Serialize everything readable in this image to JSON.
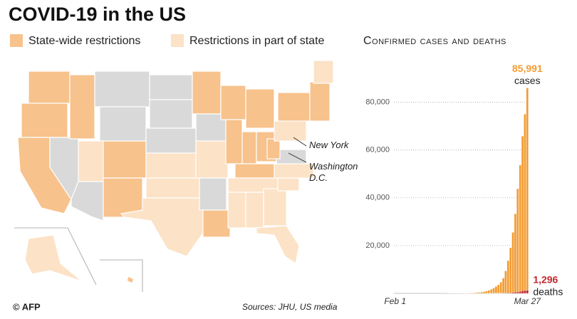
{
  "header": {
    "title": "COVID-19 in the US"
  },
  "legend": {
    "items": [
      {
        "label": "State-wide restrictions",
        "color": "#f7c28c"
      },
      {
        "label": "Restrictions in part of state",
        "color": "#fce2c6"
      }
    ]
  },
  "map": {
    "annotations": [
      "New York",
      "Washington D.C."
    ]
  },
  "chart_data": {
    "type": "bar",
    "title": "Confirmed cases and deaths",
    "categories": [
      "Feb 1",
      null,
      null,
      null,
      null,
      null,
      null,
      null,
      null,
      null,
      null,
      null,
      null,
      null,
      null,
      null,
      null,
      null,
      null,
      null,
      null,
      null,
      null,
      null,
      null,
      null,
      null,
      null,
      null,
      null,
      null,
      null,
      null,
      null,
      null,
      null,
      null,
      null,
      null,
      null,
      null,
      null,
      null,
      null,
      null,
      null,
      null,
      null,
      null,
      null,
      null,
      null,
      null,
      null,
      null,
      "Mar 27"
    ],
    "series": [
      {
        "name": "cases",
        "color": "#f39c32",
        "values": [
          8,
          8,
          11,
          11,
          12,
          12,
          12,
          12,
          12,
          13,
          13,
          14,
          15,
          15,
          15,
          15,
          15,
          15,
          15,
          15,
          35,
          35,
          35,
          53,
          53,
          59,
          60,
          62,
          70,
          89,
          105,
          125,
          159,
          227,
          331,
          444,
          564,
          728,
          1000,
          1267,
          1700,
          2247,
          2900,
          3600,
          4700,
          6400,
          9400,
          13700,
          19100,
          25500,
          33300,
          43800,
          53700,
          65800,
          75000,
          85991
        ],
        "value_labels": [
          null,
          null,
          null,
          null,
          null,
          null,
          null,
          null,
          null,
          null,
          null,
          null,
          null,
          null,
          null,
          null,
          null,
          null,
          null,
          null,
          null,
          null,
          null,
          null,
          null,
          null,
          null,
          null,
          null,
          null,
          null,
          null,
          null,
          null,
          null,
          null,
          null,
          null,
          null,
          null,
          null,
          null,
          null,
          null,
          null,
          null,
          null,
          null,
          null,
          null,
          null,
          null,
          null,
          null,
          null,
          "85,991"
        ]
      },
      {
        "name": "deaths",
        "color": "#c1272d",
        "values": [
          0,
          0,
          0,
          0,
          0,
          0,
          0,
          0,
          0,
          0,
          0,
          0,
          0,
          0,
          0,
          0,
          0,
          0,
          0,
          0,
          0,
          0,
          0,
          0,
          0,
          0,
          0,
          0,
          1,
          1,
          6,
          9,
          11,
          12,
          15,
          19,
          22,
          26,
          31,
          37,
          47,
          57,
          58,
          69,
          87,
          110,
          149,
          210,
          260,
          340,
          470,
          580,
          780,
          1050,
          1200,
          1296
        ],
        "value_labels": [
          null,
          null,
          null,
          null,
          null,
          null,
          null,
          null,
          null,
          null,
          null,
          null,
          null,
          null,
          null,
          null,
          null,
          null,
          null,
          null,
          null,
          null,
          null,
          null,
          null,
          null,
          null,
          null,
          null,
          null,
          null,
          null,
          null,
          null,
          null,
          null,
          null,
          null,
          null,
          null,
          null,
          null,
          null,
          null,
          null,
          null,
          null,
          null,
          null,
          null,
          null,
          null,
          null,
          null,
          null,
          "1,296"
        ]
      }
    ],
    "ylim": [
      0,
      90000
    ],
    "yticks": [
      {
        "value": 20000,
        "label": "20,000"
      },
      {
        "value": 40000,
        "label": "40,000"
      },
      {
        "value": 60000,
        "label": "60,000"
      },
      {
        "value": 80000,
        "label": "80,000"
      }
    ],
    "grid": true
  },
  "footer": {
    "source": "Sources: JHU, US media",
    "credit": "© AFP"
  }
}
